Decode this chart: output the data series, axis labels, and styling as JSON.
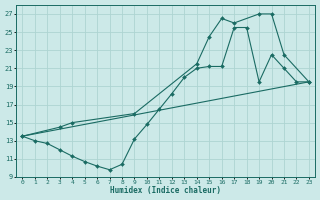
{
  "title": "",
  "xlabel": "Humidex (Indice chaleur)",
  "ylabel": "",
  "bg_color": "#cce9e8",
  "grid_color": "#aed4d2",
  "line_color": "#1a6b63",
  "xlim": [
    -0.5,
    23.5
  ],
  "ylim": [
    9,
    28
  ],
  "xticks": [
    0,
    1,
    2,
    3,
    4,
    5,
    6,
    7,
    8,
    9,
    10,
    11,
    12,
    13,
    14,
    15,
    16,
    17,
    18,
    19,
    20,
    21,
    22,
    23
  ],
  "yticks": [
    9,
    11,
    13,
    15,
    17,
    19,
    21,
    23,
    25,
    27
  ],
  "line1_x": [
    0,
    1,
    2,
    3,
    4,
    5,
    6,
    7,
    8,
    9,
    10,
    11,
    12,
    13,
    14,
    15,
    16,
    17,
    18,
    19,
    20,
    21,
    22,
    23
  ],
  "line1_y": [
    13.5,
    13.0,
    12.7,
    12.0,
    11.3,
    10.7,
    10.2,
    9.8,
    10.4,
    13.2,
    14.8,
    16.5,
    18.2,
    20.0,
    21.0,
    21.2,
    21.2,
    25.5,
    25.5,
    19.5,
    22.5,
    21.0,
    19.5,
    19.5
  ],
  "line2_x": [
    0,
    3,
    4,
    9,
    14,
    15,
    16,
    17,
    19,
    20,
    21,
    23
  ],
  "line2_y": [
    13.5,
    14.5,
    15.0,
    16.0,
    21.5,
    24.5,
    26.5,
    26.0,
    27.0,
    27.0,
    22.5,
    19.5
  ],
  "line3_x": [
    0,
    23
  ],
  "line3_y": [
    13.5,
    19.5
  ]
}
